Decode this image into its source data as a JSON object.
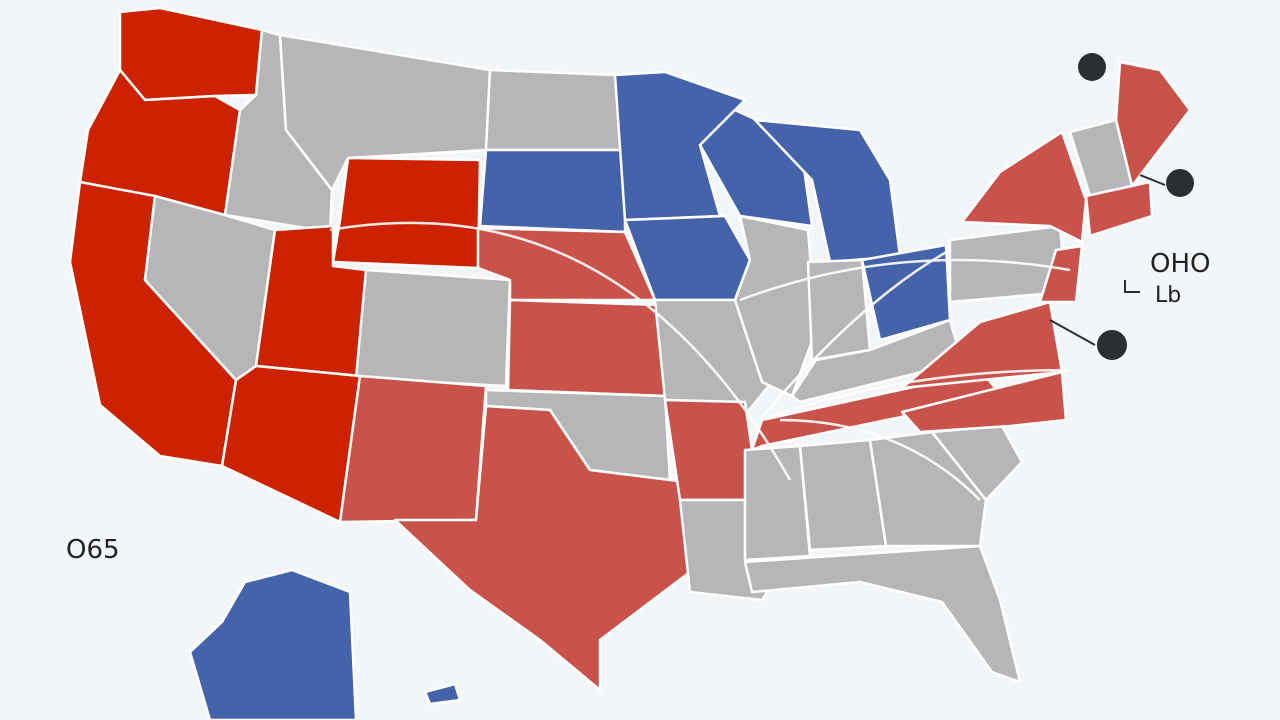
{
  "labels": {
    "left": "O65",
    "right_top": "OHO",
    "right_bottom": "Lb"
  }
}
